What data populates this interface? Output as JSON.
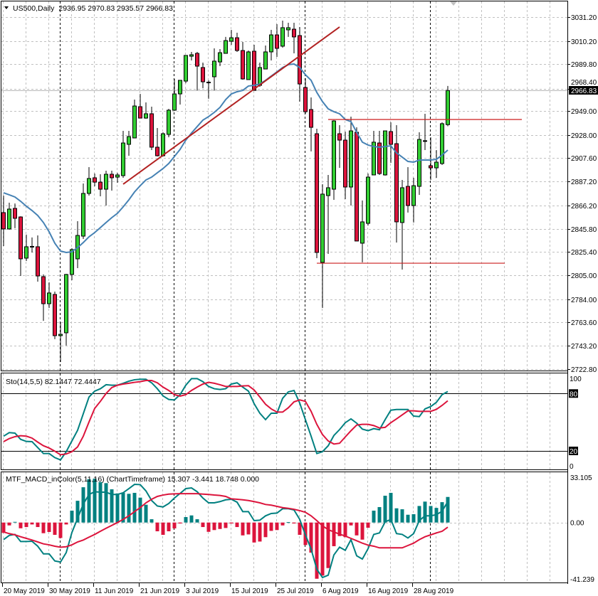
{
  "header": {
    "symbol": "US500,Daily",
    "ohlc": "2936.95 2970.83 2935.57 2966.83"
  },
  "colors": {
    "bull_candle": "#32cd32",
    "bear_candle": "#dc143c",
    "moving_average": "#4682b4",
    "trendline": "#b22222",
    "levels": "#cc1f1f",
    "sto_main": "#008080",
    "sto_signal": "#dc143c",
    "macd_up": "#008080",
    "macd_down": "#dc143c",
    "macd_line": "#008080",
    "macd_signal": "#dc143c",
    "grid": "#c0c0c0"
  },
  "price_axis": {
    "ticks": [
      "3031.20",
      "3010.20",
      "2989.80",
      "2968.40",
      "2949.00",
      "2928.00",
      "2907.60",
      "2887.20",
      "2866.20",
      "2845.80",
      "2825.40",
      "2805.00",
      "2784.00",
      "2763.60",
      "2743.20",
      "2722.80"
    ],
    "current_price": "2966.83"
  },
  "candles": [
    [
      "2019-05-20",
      2859.9,
      2874.8,
      2830.6,
      2845.6
    ],
    [
      "2019-05-21",
      2845.6,
      2868.6,
      2844.9,
      2863.0
    ],
    [
      "2019-05-22",
      2863.6,
      2867.9,
      2846.2,
      2854.9
    ],
    [
      "2019-05-23",
      2856.1,
      2856.7,
      2804.4,
      2819.4
    ],
    [
      "2019-05-24",
      2820.0,
      2840.6,
      2817.5,
      2830.0
    ],
    [
      "2019-05-27",
      2830.0,
      2838.1,
      2825.0,
      2830.3
    ],
    [
      "2019-05-28",
      2830.0,
      2839.9,
      2799.4,
      2804.4
    ],
    [
      "2019-05-29",
      2803.8,
      2805.7,
      2765.1,
      2780.1
    ],
    [
      "2019-05-30",
      2780.1,
      2798.8,
      2776.4,
      2789.5
    ],
    [
      "2019-05-31",
      2788.2,
      2790.7,
      2749.0,
      2752.1
    ],
    [
      "2019-06-03",
      2752.1,
      2763.9,
      2729.0,
      2753.3
    ],
    [
      "2019-06-04",
      2754.6,
      2806.3,
      2743.4,
      2805.7
    ],
    [
      "2019-06-05",
      2805.7,
      2828.7,
      2800.7,
      2827.5
    ],
    [
      "2019-06-06",
      2819.4,
      2852.4,
      2811.3,
      2839.9
    ],
    [
      "2019-06-07",
      2839.3,
      2885.4,
      2836.8,
      2876.7
    ],
    [
      "2019-06-10",
      2876.7,
      2899.7,
      2874.8,
      2889.8
    ],
    [
      "2019-06-11",
      2890.4,
      2894.1,
      2882.9,
      2886.6
    ],
    [
      "2019-06-12",
      2886.6,
      2893.5,
      2874.2,
      2880.4
    ],
    [
      "2019-06-13",
      2880.4,
      2896.6,
      2866.1,
      2893.5
    ],
    [
      "2019-06-14",
      2893.5,
      2896.6,
      2879.2,
      2890.4
    ],
    [
      "2019-06-17",
      2891.0,
      2894.7,
      2886.0,
      2892.9
    ],
    [
      "2019-06-18",
      2892.3,
      2931.5,
      2890.4,
      2920.9
    ],
    [
      "2019-06-19",
      2919.7,
      2931.5,
      2909.7,
      2926.5
    ],
    [
      "2019-06-20",
      2925.3,
      2958.9,
      2925.0,
      2953.3
    ],
    [
      "2019-06-21",
      2952.7,
      2963.9,
      2942.7,
      2942.7
    ],
    [
      "2019-06-24",
      2942.7,
      2956.4,
      2942.1,
      2946.5
    ],
    [
      "2019-06-25",
      2946.5,
      2952.7,
      2914.7,
      2917.2
    ],
    [
      "2019-06-26",
      2917.2,
      2934.0,
      2909.1,
      2909.7
    ],
    [
      "2019-06-27",
      2909.7,
      2930.3,
      2909.1,
      2929.0
    ],
    [
      "2019-06-28",
      2928.4,
      2950.8,
      2925.9,
      2949.6
    ],
    [
      "2019-07-01",
      2949.6,
      2977.0,
      2949.0,
      2963.9
    ],
    [
      "2019-07-02",
      2963.9,
      2975.8,
      2954.6,
      2975.8
    ],
    [
      "2019-07-03",
      2975.1,
      2997.6,
      2973.3,
      2997.6
    ],
    [
      "2019-07-04",
      2996.9,
      3000.7,
      2993.2,
      2998.2
    ],
    [
      "2019-07-05",
      2999.4,
      3000.7,
      2967.0,
      2988.2
    ],
    [
      "2019-07-08",
      2987.0,
      2991.3,
      2968.9,
      2974.5
    ],
    [
      "2019-07-09",
      2974.2,
      2975.8,
      2959.6,
      2973.9
    ],
    [
      "2019-07-10",
      2978.9,
      3003.8,
      2967.0,
      2992.6
    ],
    [
      "2019-07-11",
      2991.9,
      3003.2,
      2988.2,
      3000.0
    ],
    [
      "2019-07-12",
      2999.4,
      3013.8,
      2999.4,
      3010.6
    ],
    [
      "2019-07-15",
      3010.0,
      3020.0,
      3006.9,
      3013.1
    ],
    [
      "2019-07-16",
      3013.1,
      3017.5,
      3000.7,
      3001.9
    ],
    [
      "2019-07-17",
      3001.9,
      3009.4,
      2976.4,
      2977.0
    ],
    [
      "2019-07-18",
      2976.4,
      3001.9,
      2976.4,
      3000.7
    ],
    [
      "2019-07-19",
      3001.3,
      3006.9,
      2967.0,
      2967.0
    ],
    [
      "2019-07-22",
      2971.4,
      2991.3,
      2970.1,
      2987.0
    ],
    [
      "2019-07-23",
      2985.7,
      3006.3,
      2985.7,
      3000.7
    ],
    [
      "2019-07-24",
      3000.7,
      3020.0,
      2993.2,
      3015.6
    ],
    [
      "2019-07-25",
      3015.6,
      3025.0,
      2996.3,
      3003.8
    ],
    [
      "2019-07-26",
      3005.7,
      3028.1,
      3004.4,
      3021.9
    ],
    [
      "2019-07-29",
      3020.0,
      3026.2,
      3013.8,
      3021.9
    ],
    [
      "2019-07-30",
      3020.6,
      3026.2,
      2999.4,
      3013.8
    ],
    [
      "2019-07-31",
      3015.0,
      3022.5,
      2957.1,
      2972.6
    ],
    [
      "2019-08-01",
      2969.5,
      2977.6,
      2946.5,
      2948.3
    ],
    [
      "2019-08-02",
      2950.2,
      2960.8,
      2913.5,
      2934.6
    ],
    [
      "2019-08-05",
      2929.0,
      2933.4,
      2820.0,
      2825.0
    ],
    [
      "2019-08-06",
      2816.3,
      2884.8,
      2776.4,
      2876.1
    ],
    [
      "2019-08-07",
      2874.8,
      2892.9,
      2823.7,
      2881.7
    ],
    [
      "2019-08-08",
      2880.4,
      2940.9,
      2871.1,
      2940.2
    ],
    [
      "2019-08-09",
      2929.0,
      2936.5,
      2899.1,
      2923.4
    ],
    [
      "2019-08-12",
      2923.4,
      2930.9,
      2871.7,
      2882.3
    ],
    [
      "2019-08-13",
      2882.3,
      2944.0,
      2866.1,
      2931.5
    ],
    [
      "2019-08-14",
      2930.3,
      2934.6,
      2835.0,
      2835.0
    ],
    [
      "2019-08-15",
      2833.1,
      2870.5,
      2816.3,
      2851.8
    ],
    [
      "2019-08-16",
      2850.5,
      2894.1,
      2848.6,
      2891.0
    ],
    [
      "2019-08-19",
      2892.9,
      2931.5,
      2892.9,
      2921.6
    ],
    [
      "2019-08-20",
      2920.9,
      2931.5,
      2892.9,
      2894.1
    ],
    [
      "2019-08-21",
      2892.9,
      2931.5,
      2892.3,
      2931.5
    ],
    [
      "2019-08-22",
      2930.9,
      2939.0,
      2903.5,
      2919.7
    ],
    [
      "2019-08-23",
      2920.3,
      2936.5,
      2833.7,
      2851.8
    ],
    [
      "2019-08-26",
      2851.2,
      2888.5,
      2810.0,
      2881.7
    ],
    [
      "2019-08-27",
      2882.9,
      2899.7,
      2859.9,
      2866.1
    ],
    [
      "2019-08-28",
      2866.1,
      2890.4,
      2851.2,
      2883.5
    ],
    [
      "2019-08-29",
      2882.9,
      2930.3,
      2875.4,
      2924.0
    ],
    [
      "2019-08-30",
      2922.9,
      2946.5,
      2914.7,
      2922.8
    ],
    [
      "2019-09-02",
      2901.0,
      2925.9,
      2888.5,
      2899.1
    ],
    [
      "2019-09-03",
      2899.1,
      2914.7,
      2890.4,
      2904.1
    ],
    [
      "2019-09-04",
      2902.9,
      2939.0,
      2901.6,
      2937.8
    ],
    [
      "2019-09-05",
      2936.95,
      2970.83,
      2935.57,
      2966.83
    ]
  ],
  "moving_average": [
    2877.3,
    2875.5,
    2873.6,
    2869.8,
    2865.5,
    2861.7,
    2857.4,
    2851.2,
    2843.1,
    2833.1,
    2826.2,
    2825.0,
    2825.6,
    2829.3,
    2833.7,
    2838.7,
    2842.4,
    2846.8,
    2851.2,
    2855.5,
    2859.3,
    2864.9,
    2871.1,
    2878.0,
    2883.5,
    2888.5,
    2891.0,
    2894.8,
    2898.5,
    2902.9,
    2909.1,
    2915.3,
    2923.4,
    2929.6,
    2935.3,
    2940.9,
    2944.0,
    2947.7,
    2952.1,
    2958.9,
    2963.9,
    2965.8,
    2967.0,
    2970.8,
    2971.4,
    2972.6,
    2975.8,
    2979.5,
    2983.2,
    2987.0,
    2989.5,
    2990.1,
    2987.0,
    2980.7,
    2975.8,
    2965.2,
    2957.1,
    2950.8,
    2948.3,
    2946.5,
    2941.5,
    2939.6,
    2930.3,
    2921.6,
    2919.1,
    2917.8,
    2917.2,
    2917.8,
    2918.4,
    2912.2,
    2908.5,
    2904.7,
    2904.1,
    2906.0,
    2906.0,
    2906.0,
    2906.6,
    2910.3,
    2914.7
  ],
  "trendlines": [
    {
      "from": [
        "2019-06-18",
        2884.8
      ],
      "to": [
        "2019-08-09",
        3022.5
      ]
    }
  ],
  "levels": [
    {
      "price": 2941.5,
      "from": "2019-08-07",
      "to": "2019-09-24"
    },
    {
      "price": 2815.6,
      "from": "2019-08-05",
      "to": "2019-09-19"
    }
  ],
  "stochastic": {
    "label": "Sto(14,5,5) 82.1447 72.4447",
    "axis": {
      "max": "100",
      "upper": "80",
      "lower": "20",
      "min": "0"
    },
    "main": [
      35.4,
      39.1,
      38.6,
      32.1,
      29.9,
      29.7,
      23.5,
      17.3,
      17.3,
      13.0,
      10.6,
      19.2,
      30.4,
      41.6,
      58.9,
      76.3,
      82.5,
      85.0,
      89.2,
      88.7,
      88.7,
      90.7,
      92.9,
      94.4,
      94.9,
      94.9,
      91.2,
      85.0,
      77.5,
      73.8,
      73.3,
      78.8,
      88.7,
      95.6,
      95.6,
      92.4,
      87.4,
      85.0,
      84.2,
      85.0,
      89.9,
      91.2,
      86.7,
      82.5,
      69.3,
      59.4,
      52.7,
      59.4,
      59.4,
      75.0,
      81.7,
      83.2,
      70.1,
      52.7,
      35.4,
      17.3,
      19.2,
      25.4,
      36.1,
      42.3,
      49.5,
      53.5,
      49.0,
      42.8,
      41.1,
      43.3,
      42.1,
      52.7,
      62.6,
      63.3,
      63.3,
      63.3,
      56.4,
      55.9,
      63.9,
      66.4,
      70.8,
      78.8,
      82.1
    ],
    "signal": [
      29.7,
      32.9,
      34.9,
      35.9,
      35.4,
      33.4,
      29.2,
      25.4,
      23.0,
      19.7,
      16.0,
      16.8,
      19.2,
      24.2,
      35.4,
      50.2,
      64.4,
      71.8,
      80.0,
      86.2,
      88.7,
      89.9,
      90.7,
      91.7,
      92.4,
      93.6,
      93.6,
      91.2,
      86.7,
      83.2,
      78.8,
      77.3,
      78.8,
      83.2,
      86.7,
      89.9,
      91.7,
      90.7,
      89.2,
      87.4,
      87.4,
      87.4,
      87.9,
      88.2,
      83.7,
      76.3,
      68.8,
      63.9,
      60.6,
      60.6,
      65.1,
      71.3,
      73.3,
      71.8,
      61.4,
      47.8,
      37.1,
      30.4,
      27.2,
      28.0,
      34.6,
      41.1,
      47.0,
      47.8,
      47.8,
      46.5,
      44.0,
      44.6,
      49.5,
      53.5,
      57.7,
      61.9,
      61.9,
      61.4,
      61.4,
      61.4,
      63.4,
      67.6,
      72.4
    ]
  },
  "macd": {
    "label": "MTF_MACD_inColor(5,11,16) (ChartTimeframe) 15.307 -3.441 18.748 0.000",
    "axis": {
      "max": "33.105",
      "zero": "0.00",
      "min": "-41.239"
    },
    "histogram": [
      -7.6,
      -2.1,
      0.5,
      -4.2,
      -3.3,
      -1.4,
      -3.3,
      -7.8,
      -6.9,
      -9.0,
      -11.3,
      -1.4,
      8.7,
      15.9,
      25.8,
      31.7,
      32.1,
      29.6,
      28.8,
      24.3,
      21.3,
      21.8,
      21.0,
      21.7,
      18.2,
      13.0,
      2.4,
      -6.4,
      -9.0,
      -6.4,
      -4.3,
      -0.7,
      4.0,
      5.2,
      2.4,
      -3.3,
      -6.8,
      -5.5,
      -4.7,
      -4.0,
      -0.7,
      -3.3,
      -9.4,
      -8.7,
      -14.6,
      -13.9,
      -10.7,
      -6.1,
      -5.5,
      -2.1,
      0.3,
      -0.7,
      -9.0,
      -16.5,
      -22.0,
      -41.1,
      -38.8,
      -33.3,
      -17.3,
      -9.9,
      -10.7,
      -2.1,
      -9.4,
      -12.5,
      -3.8,
      8.7,
      11.3,
      19.6,
      21.7,
      10.4,
      9.7,
      5.7,
      6.1,
      12.1,
      15.3,
      12.1,
      10.7,
      14.9,
      18.7
    ],
    "macd_line": [
      -12.5,
      -9.4,
      -8.7,
      -13.9,
      -13.9,
      -13.7,
      -17.3,
      -22.9,
      -22.9,
      -28.1,
      -28.9,
      -22.0,
      -7.3,
      3.1,
      13.5,
      20.5,
      22.5,
      22.2,
      22.2,
      20.5,
      20.5,
      21.8,
      24.8,
      27.9,
      27.7,
      23.1,
      16.1,
      12.1,
      11.4,
      13.9,
      17.9,
      21.3,
      24.8,
      25.3,
      22.5,
      17.9,
      14.4,
      14.4,
      15.3,
      16.6,
      17.0,
      14.9,
      8.0,
      8.0,
      1.4,
      1.7,
      4.9,
      6.6,
      6.9,
      10.1,
      10.1,
      9.2,
      2.3,
      -9.0,
      -19.4,
      -34.1,
      -40.2,
      -38.5,
      -23.7,
      -18.0,
      -20.3,
      -12.5,
      -24.3,
      -26.7,
      -19.1,
      -8.7,
      -7.6,
      0.5,
      2.3,
      -8.1,
      -8.7,
      -11.3,
      -8.1,
      1.4,
      4.9,
      4.9,
      5.7,
      8.3,
      15.3
    ],
    "signal_line": [
      -6.9,
      -8.1,
      -9.0,
      -10.4,
      -11.6,
      -12.8,
      -14.2,
      -15.6,
      -16.3,
      -17.3,
      -18.0,
      -17.7,
      -16.3,
      -14.2,
      -12.8,
      -10.7,
      -8.7,
      -6.4,
      -4.2,
      -2.1,
      0.0,
      2.3,
      4.9,
      8.0,
      10.9,
      14.4,
      17.0,
      19.1,
      20.1,
      20.8,
      21.0,
      21.1,
      21.1,
      21.1,
      21.1,
      20.8,
      20.5,
      20.1,
      19.8,
      19.1,
      17.3,
      17.0,
      16.6,
      16.1,
      15.3,
      14.4,
      13.2,
      12.7,
      11.8,
      10.9,
      10.4,
      9.7,
      8.7,
      7.5,
      4.9,
      1.4,
      -2.4,
      -5.2,
      -6.9,
      -8.5,
      -9.9,
      -11.6,
      -13.3,
      -15.1,
      -16.5,
      -17.3,
      -18.5,
      -18.5,
      -18.5,
      -18.5,
      -18.5,
      -16.8,
      -15.1,
      -12.5,
      -10.4,
      -9.0,
      -7.6,
      -6.4,
      -3.4
    ]
  },
  "date_axis": [
    "20 May 2019",
    "30 May 2019",
    "11 Jun 2019",
    "21 Jun 2019",
    "3 Jul 2019",
    "15 Jul 2019",
    "25 Jul 2019",
    "6 Aug 2019",
    "16 Aug 2019",
    "28 Aug 2019"
  ]
}
